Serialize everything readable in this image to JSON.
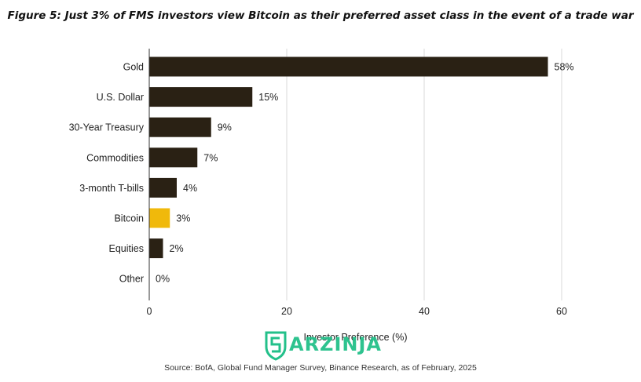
{
  "figure_title": "Figure 5: Just 3% of FMS investors view Bitcoin as their preferred asset class in the event of a trade war",
  "source": "Source: BofA, Global Fund Manager Survey, Binance Research, as of February, 2025",
  "watermark": {
    "text": "ARZINJA",
    "icon": "shield-logo-icon",
    "color": "#23c08a"
  },
  "chart_data": {
    "type": "bar",
    "orientation": "horizontal",
    "title": "Figure 5: Just 3% of FMS investors view Bitcoin as their preferred asset class in the event of a trade war",
    "xlabel": "Investor Preference (%)",
    "ylabel": "",
    "xlim": [
      0,
      60
    ],
    "xticks": [
      0,
      20,
      40,
      60
    ],
    "grid": true,
    "categories": [
      "Gold",
      "U.S. Dollar",
      "30-Year Treasury",
      "Commodities",
      "3-month T-bills",
      "Bitcoin",
      "Equities",
      "Other"
    ],
    "values": [
      58,
      15,
      9,
      7,
      4,
      3,
      2,
      0
    ],
    "value_labels": [
      "58%",
      "15%",
      "9%",
      "7%",
      "4%",
      "3%",
      "2%",
      "0%"
    ],
    "colors": {
      "default": "#2a2114",
      "highlight": "#f0b90b",
      "highlight_category": "Bitcoin",
      "grid": "#d9d9d9"
    }
  }
}
